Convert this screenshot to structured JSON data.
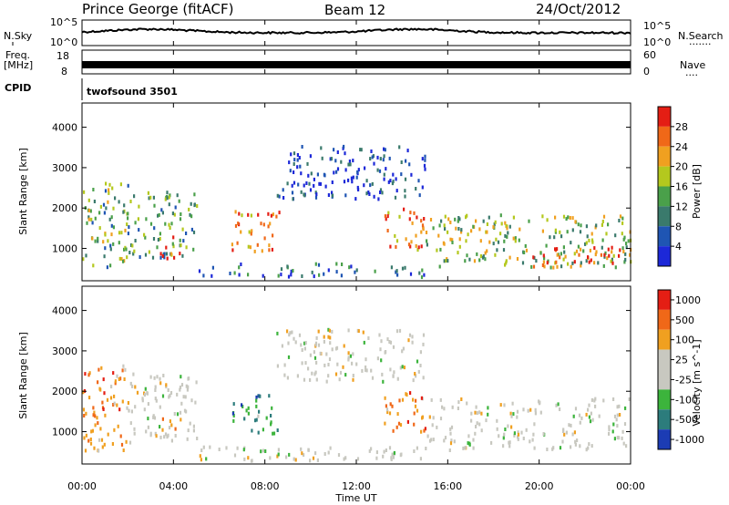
{
  "header": {
    "station": "Prince George (fitACF)",
    "beam": "Beam 12",
    "date": "24/Oct/2012"
  },
  "strip_labels": {
    "nsky": "N.Sky",
    "nsearch": "N.Search",
    "nsearch_dots": "·······",
    "freq_top": "Freq.",
    "freq_unit": "[MHz]",
    "nave": "Nave",
    "nave_dots": "····",
    "cpid": "CPID",
    "program": "twofsound 3501",
    "noise_left_hi": "10^5",
    "noise_left_lo": "10^0",
    "noise_right_hi": "10^5",
    "noise_right_lo": "10^0",
    "freq_left_hi": "18",
    "freq_left_lo": "8",
    "nave_right_hi": "60",
    "nave_right_lo": "0"
  },
  "chart_data": [
    {
      "type": "heatmap",
      "quantity": "Power",
      "ylabel": "Slant Range [km]",
      "ylim": [
        200,
        4600
      ],
      "yticks": [
        "1000",
        "2000",
        "3000",
        "4000"
      ],
      "xlim": [
        "00:00",
        "24:00"
      ],
      "xticks": [
        "00:00",
        "04:00",
        "08:00",
        "12:00",
        "16:00",
        "20:00",
        "00:00"
      ],
      "colorbar_label": "Power [dB]",
      "colorbar_ticks": [
        "4",
        "8",
        "12",
        "16",
        "20",
        "24",
        "28"
      ],
      "colorbar_colors": [
        "#1c28d8",
        "#1f55b3",
        "#3a7a6c",
        "#4aa04a",
        "#b4c81e",
        "#f0a020",
        "#f06818",
        "#e41e14"
      ],
      "echo_regions": [
        {
          "t": [
            0.0,
            2.0
          ],
          "range_km": [
            500,
            2600
          ],
          "level": 0.45
        },
        {
          "t": [
            2.0,
            5.0
          ],
          "range_km": [
            700,
            2400
          ],
          "level": 0.4
        },
        {
          "t": [
            3.4,
            4.3
          ],
          "range_km": [
            700,
            1300
          ],
          "level": 0.9
        },
        {
          "t": [
            6.5,
            8.6
          ],
          "range_km": [
            900,
            1900
          ],
          "level": 0.8
        },
        {
          "t": [
            8.5,
            15.0
          ],
          "range_km": [
            2200,
            3500
          ],
          "level": 0.15
        },
        {
          "t": [
            13.2,
            15.0
          ],
          "range_km": [
            900,
            2000
          ],
          "level": 0.8
        },
        {
          "t": [
            15.0,
            24.0
          ],
          "range_km": [
            500,
            1800
          ],
          "level": 0.5
        },
        {
          "t": [
            19.5,
            23.5
          ],
          "range_km": [
            500,
            1000
          ],
          "level": 0.9
        },
        {
          "t": [
            5.0,
            15.0
          ],
          "range_km": [
            250,
            600
          ],
          "level": 0.25
        }
      ]
    },
    {
      "type": "heatmap",
      "quantity": "Velocity",
      "ylabel": "Slant Range [km]",
      "ylim": [
        200,
        4600
      ],
      "yticks": [
        "1000",
        "2000",
        "3000",
        "4000"
      ],
      "xlim": [
        "00:00",
        "24:00"
      ],
      "xticks": [
        "00:00",
        "04:00",
        "08:00",
        "12:00",
        "16:00",
        "20:00",
        "00:00"
      ],
      "xlabel": "Time UT",
      "colorbar_label": "Velocity [m s^-1]",
      "colorbar_ticks": [
        "1000",
        "500",
        "100",
        "25",
        "-25",
        "-100",
        "-500",
        "-1000"
      ],
      "colorbar_colors": [
        "#1c3cb4",
        "#2c7c7c",
        "#3cb43c",
        "#c8c8c0",
        "#c8c8c0",
        "#f0a020",
        "#f06818",
        "#e41e14"
      ],
      "echo_regions": [
        {
          "t": [
            0.0,
            2.0
          ],
          "range_km": [
            500,
            2600
          ],
          "velocity": "negative"
        },
        {
          "t": [
            2.0,
            5.0
          ],
          "range_km": [
            700,
            2400
          ],
          "velocity": "near-zero"
        },
        {
          "t": [
            3.4,
            4.3
          ],
          "range_km": [
            700,
            1300
          ],
          "velocity": "negative"
        },
        {
          "t": [
            6.5,
            8.6
          ],
          "range_km": [
            900,
            1900
          ],
          "velocity": "positive"
        },
        {
          "t": [
            8.5,
            15.0
          ],
          "range_km": [
            2200,
            3500
          ],
          "velocity": "near-zero"
        },
        {
          "t": [
            13.2,
            15.0
          ],
          "range_km": [
            900,
            2000
          ],
          "velocity": "negative"
        },
        {
          "t": [
            15.0,
            24.0
          ],
          "range_km": [
            500,
            1800
          ],
          "velocity": "near-zero"
        },
        {
          "t": [
            5.0,
            15.0
          ],
          "range_km": [
            250,
            600
          ],
          "velocity": "near-zero"
        }
      ]
    }
  ]
}
